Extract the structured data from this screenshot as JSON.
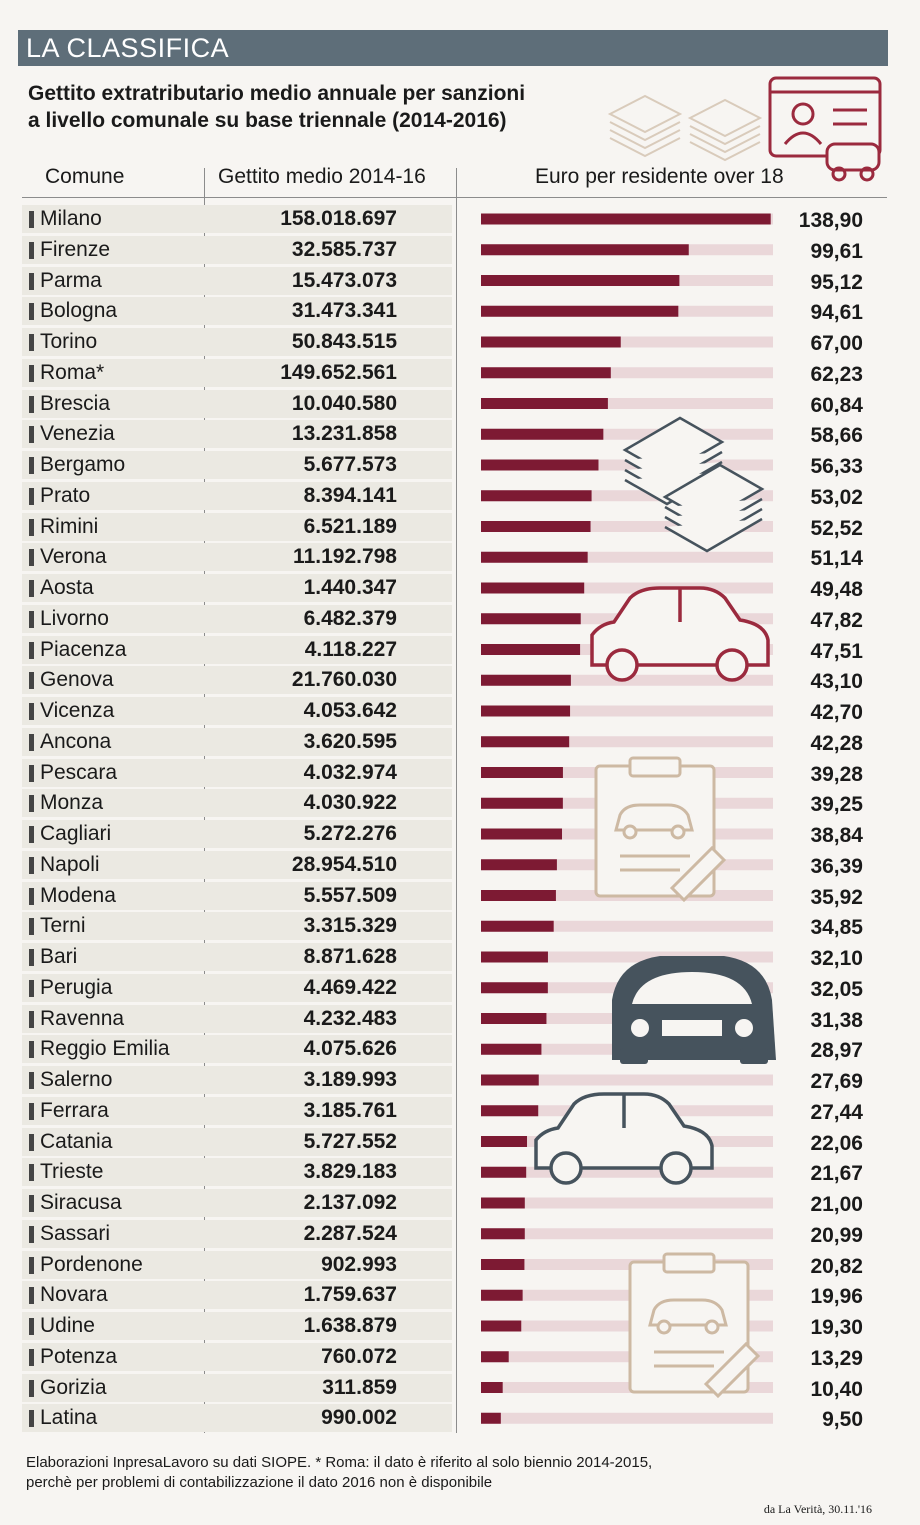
{
  "header": {
    "banner": "LA CLASSIFICA",
    "subtitle_line1": "Gettito extratributario medio annuale per sanzioni",
    "subtitle_line2": "a livello comunale su base triennale (2014-2016)"
  },
  "columns": {
    "city": "Comune",
    "amount": "Gettito medio 2014-16",
    "per_resident": "Euro per residente over 18"
  },
  "colors": {
    "bar": "#7d1a33",
    "track": "#ead7d9",
    "banner": "#5e6e79",
    "icon_red": "#9b2a3e",
    "icon_slate": "#46535d",
    "icon_tan": "#cdb9a3"
  },
  "rows": [
    {
      "city": "Milano",
      "amount": "158.018.697",
      "value_label": "138,90"
    },
    {
      "city": "Firenze",
      "amount": "32.585.737",
      "value_label": "99,61"
    },
    {
      "city": "Parma",
      "amount": "15.473.073",
      "value_label": "95,12"
    },
    {
      "city": "Bologna",
      "amount": "31.473.341",
      "value_label": "94,61"
    },
    {
      "city": "Torino",
      "amount": "50.843.515",
      "value_label": "67,00"
    },
    {
      "city": "Roma*",
      "amount": "149.652.561",
      "value_label": "62,23"
    },
    {
      "city": "Brescia",
      "amount": "10.040.580",
      "value_label": "60,84"
    },
    {
      "city": "Venezia",
      "amount": "13.231.858",
      "value_label": "58,66"
    },
    {
      "city": "Bergamo",
      "amount": "5.677.573",
      "value_label": "56,33"
    },
    {
      "city": "Prato",
      "amount": "8.394.141",
      "value_label": "53,02"
    },
    {
      "city": "Rimini",
      "amount": "6.521.189",
      "value_label": "52,52"
    },
    {
      "city": "Verona",
      "amount": "11.192.798",
      "value_label": "51,14"
    },
    {
      "city": "Aosta",
      "amount": "1.440.347",
      "value_label": "49,48"
    },
    {
      "city": "Livorno",
      "amount": "6.482.379",
      "value_label": "47,82"
    },
    {
      "city": "Piacenza",
      "amount": "4.118.227",
      "value_label": "47,51"
    },
    {
      "city": "Genova",
      "amount": "21.760.030",
      "value_label": "43,10"
    },
    {
      "city": "Vicenza",
      "amount": "4.053.642",
      "value_label": "42,70"
    },
    {
      "city": "Ancona",
      "amount": "3.620.595",
      "value_label": "42,28"
    },
    {
      "city": "Pescara",
      "amount": "4.032.974",
      "value_label": "39,28"
    },
    {
      "city": "Monza",
      "amount": "4.030.922",
      "value_label": "39,25"
    },
    {
      "city": "Cagliari",
      "amount": "5.272.276",
      "value_label": "38,84"
    },
    {
      "city": "Napoli",
      "amount": "28.954.510",
      "value_label": "36,39"
    },
    {
      "city": "Modena",
      "amount": "5.557.509",
      "value_label": "35,92"
    },
    {
      "city": "Terni",
      "amount": "3.315.329",
      "value_label": "34,85"
    },
    {
      "city": "Bari",
      "amount": "8.871.628",
      "value_label": "32,10"
    },
    {
      "city": "Perugia",
      "amount": "4.469.422",
      "value_label": "32,05"
    },
    {
      "city": "Ravenna",
      "amount": "4.232.483",
      "value_label": "31,38"
    },
    {
      "city": "Reggio Emilia",
      "amount": "4.075.626",
      "value_label": "28,97"
    },
    {
      "city": "Salerno",
      "amount": "3.189.993",
      "value_label": "27,69"
    },
    {
      "city": "Ferrara",
      "amount": "3.185.761",
      "value_label": "27,44"
    },
    {
      "city": "Catania",
      "amount": "5.727.552",
      "value_label": "22,06"
    },
    {
      "city": "Trieste",
      "amount": "3.829.183",
      "value_label": "21,67"
    },
    {
      "city": "Siracusa",
      "amount": "2.137.092",
      "value_label": "21,00"
    },
    {
      "city": "Sassari",
      "amount": "2.287.524",
      "value_label": "20,99"
    },
    {
      "city": "Pordenone",
      "amount": "902.993",
      "value_label": "20,82"
    },
    {
      "city": "Novara",
      "amount": "1.759.637",
      "value_label": "19,96"
    },
    {
      "city": "Udine",
      "amount": "1.638.879",
      "value_label": "19,30"
    },
    {
      "city": "Potenza",
      "amount": "760.072",
      "value_label": "13,29"
    },
    {
      "city": "Gorizia",
      "amount": "311.859",
      "value_label": "10,40"
    },
    {
      "city": "Latina",
      "amount": "990.002",
      "value_label": "9,50"
    }
  ],
  "chart_data": {
    "type": "bar",
    "orientation": "horizontal",
    "title": "Gettito extratributario medio annuale per sanzioni a livello comunale su base triennale (2014-2016)",
    "xlabel": "Euro per residente over 18",
    "ylabel": "Comune",
    "xlim": [
      0,
      140
    ],
    "categories": [
      "Milano",
      "Firenze",
      "Parma",
      "Bologna",
      "Torino",
      "Roma*",
      "Brescia",
      "Venezia",
      "Bergamo",
      "Prato",
      "Rimini",
      "Verona",
      "Aosta",
      "Livorno",
      "Piacenza",
      "Genova",
      "Vicenza",
      "Ancona",
      "Pescara",
      "Monza",
      "Cagliari",
      "Napoli",
      "Modena",
      "Terni",
      "Bari",
      "Perugia",
      "Ravenna",
      "Reggio Emilia",
      "Salerno",
      "Ferrara",
      "Catania",
      "Trieste",
      "Siracusa",
      "Sassari",
      "Pordenone",
      "Novara",
      "Udine",
      "Potenza",
      "Gorizia",
      "Latina"
    ],
    "values": [
      138.9,
      99.61,
      95.12,
      94.61,
      67.0,
      62.23,
      60.84,
      58.66,
      56.33,
      53.02,
      52.52,
      51.14,
      49.48,
      47.82,
      47.51,
      43.1,
      42.7,
      42.28,
      39.28,
      39.25,
      38.84,
      36.39,
      35.92,
      34.85,
      32.1,
      32.05,
      31.38,
      28.97,
      27.69,
      27.44,
      22.06,
      21.67,
      21.0,
      20.99,
      20.82,
      19.96,
      19.3,
      13.29,
      10.4,
      9.5
    ]
  },
  "footer": {
    "note_line1": "Elaborazioni InpresaLavoro su dati SIOPE. * Roma: il dato è riferito al solo biennio 2014-2015,",
    "note_line2": "perchè per problemi di contabilizzazione il dato 2016 non è disponibile",
    "credit": "da La Verità, 30.11.'16"
  }
}
